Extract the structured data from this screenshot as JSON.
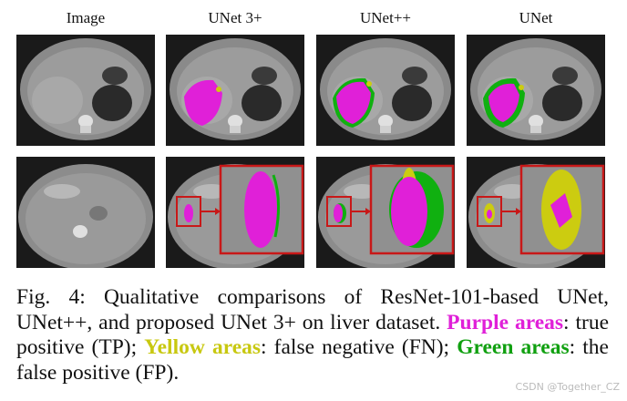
{
  "headers": [
    "Image",
    "UNet 3+",
    "UNet++",
    "UNet"
  ],
  "caption": {
    "prefix": "Fig. 4: Qualitative comparisons of ResNet-101-based UNet, UNet++, and proposed UNet 3+ on liver dataset. ",
    "purple_label": "Purple areas",
    "purple_text": ": true positive (TP); ",
    "yellow_label": "Yellow areas",
    "yellow_text": ": false negative (FN); ",
    "green_label": "Green areas",
    "green_text": ": the false positive (FP)."
  },
  "colors": {
    "purple": "#e020d8",
    "yellow": "#cccc10",
    "green": "#10b010",
    "zoom_box": "#c81818"
  },
  "watermark": "CSDN @Together_CZ"
}
